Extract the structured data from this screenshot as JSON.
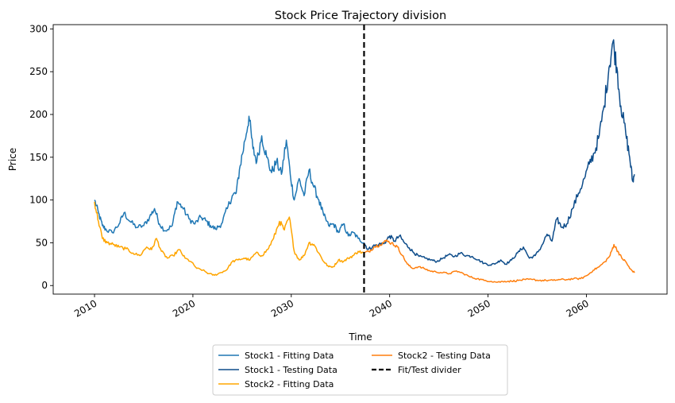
{
  "chart_data": {
    "type": "line",
    "title": "Stock Price Trajectory division",
    "xlabel": "Time",
    "ylabel": "Price",
    "xlim": [
      2005.8,
      2068.2
    ],
    "ylim": [
      -10,
      305
    ],
    "x_ticks": [
      2010,
      2020,
      2030,
      2040,
      2050,
      2060
    ],
    "y_ticks": [
      0,
      50,
      100,
      150,
      200,
      250,
      300
    ],
    "grid": false,
    "legend_placement": "below plot, centered",
    "divider": {
      "x": 2037.4,
      "label": "Fit/Test divider",
      "style": "dashed",
      "color": "#000000"
    },
    "series": [
      {
        "name": "Stock1 - Fitting Data",
        "color": "#1f77b4",
        "points": [
          [
            2010.0,
            100
          ],
          [
            2010.4,
            85
          ],
          [
            2010.8,
            70
          ],
          [
            2011.2,
            65
          ],
          [
            2011.8,
            62
          ],
          [
            2012.5,
            72
          ],
          [
            2013.0,
            85
          ],
          [
            2013.6,
            75
          ],
          [
            2014.3,
            68
          ],
          [
            2015.0,
            70
          ],
          [
            2015.6,
            80
          ],
          [
            2016.1,
            90
          ],
          [
            2016.6,
            72
          ],
          [
            2017.2,
            64
          ],
          [
            2017.9,
            70
          ],
          [
            2018.4,
            98
          ],
          [
            2018.9,
            92
          ],
          [
            2019.6,
            78
          ],
          [
            2020.2,
            72
          ],
          [
            2020.8,
            80
          ],
          [
            2021.3,
            76
          ],
          [
            2021.8,
            70
          ],
          [
            2022.3,
            66
          ],
          [
            2022.9,
            72
          ],
          [
            2023.5,
            90
          ],
          [
            2024.0,
            105
          ],
          [
            2024.4,
            108
          ],
          [
            2024.8,
            140
          ],
          [
            2025.3,
            170
          ],
          [
            2025.7,
            198
          ],
          [
            2026.1,
            160
          ],
          [
            2026.5,
            145
          ],
          [
            2027.0,
            175
          ],
          [
            2027.5,
            150
          ],
          [
            2028.0,
            132
          ],
          [
            2028.5,
            145
          ],
          [
            2029.0,
            130
          ],
          [
            2029.5,
            170
          ],
          [
            2029.9,
            130
          ],
          [
            2030.3,
            100
          ],
          [
            2030.8,
            125
          ],
          [
            2031.3,
            105
          ],
          [
            2031.8,
            135
          ],
          [
            2032.3,
            115
          ],
          [
            2032.8,
            100
          ],
          [
            2033.3,
            82
          ],
          [
            2033.8,
            70
          ],
          [
            2034.3,
            72
          ],
          [
            2034.8,
            62
          ],
          [
            2035.3,
            72
          ],
          [
            2035.8,
            58
          ],
          [
            2036.3,
            62
          ],
          [
            2036.8,
            55
          ],
          [
            2037.4,
            50
          ]
        ]
      },
      {
        "name": "Stock1 - Testing Data",
        "color": "#0d4c8a",
        "points": [
          [
            2037.4,
            50
          ],
          [
            2037.8,
            42
          ],
          [
            2038.3,
            46
          ],
          [
            2038.9,
            48
          ],
          [
            2039.5,
            50
          ],
          [
            2040.0,
            58
          ],
          [
            2040.5,
            52
          ],
          [
            2041.0,
            58
          ],
          [
            2041.5,
            50
          ],
          [
            2042.0,
            44
          ],
          [
            2042.5,
            38
          ],
          [
            2043.0,
            34
          ],
          [
            2043.6,
            32
          ],
          [
            2044.2,
            30
          ],
          [
            2044.8,
            28
          ],
          [
            2045.4,
            32
          ],
          [
            2046.0,
            36
          ],
          [
            2046.6,
            34
          ],
          [
            2047.2,
            38
          ],
          [
            2047.8,
            35
          ],
          [
            2048.4,
            34
          ],
          [
            2049.0,
            30
          ],
          [
            2049.6,
            26
          ],
          [
            2050.2,
            24
          ],
          [
            2050.8,
            26
          ],
          [
            2051.3,
            30
          ],
          [
            2051.8,
            25
          ],
          [
            2052.4,
            30
          ],
          [
            2053.0,
            38
          ],
          [
            2053.6,
            45
          ],
          [
            2054.2,
            32
          ],
          [
            2054.8,
            35
          ],
          [
            2055.4,
            45
          ],
          [
            2056.0,
            60
          ],
          [
            2056.5,
            52
          ],
          [
            2057.0,
            78
          ],
          [
            2057.5,
            68
          ],
          [
            2058.0,
            72
          ],
          [
            2058.6,
            90
          ],
          [
            2059.2,
            108
          ],
          [
            2059.8,
            125
          ],
          [
            2060.3,
            142
          ],
          [
            2060.8,
            155
          ],
          [
            2061.3,
            175
          ],
          [
            2061.8,
            210
          ],
          [
            2062.3,
            255
          ],
          [
            2062.7,
            285
          ],
          [
            2063.1,
            255
          ],
          [
            2063.5,
            210
          ],
          [
            2064.0,
            178
          ],
          [
            2064.4,
            150
          ],
          [
            2064.7,
            122
          ],
          [
            2064.9,
            130
          ]
        ]
      },
      {
        "name": "Stock2 - Fitting Data",
        "color": "#ffa500",
        "points": [
          [
            2010.0,
            98
          ],
          [
            2010.4,
            75
          ],
          [
            2010.8,
            55
          ],
          [
            2011.3,
            50
          ],
          [
            2011.9,
            48
          ],
          [
            2012.5,
            45
          ],
          [
            2013.2,
            43
          ],
          [
            2013.9,
            38
          ],
          [
            2014.6,
            35
          ],
          [
            2015.3,
            45
          ],
          [
            2015.8,
            42
          ],
          [
            2016.3,
            55
          ],
          [
            2016.8,
            40
          ],
          [
            2017.4,
            32
          ],
          [
            2018.0,
            35
          ],
          [
            2018.6,
            42
          ],
          [
            2019.2,
            32
          ],
          [
            2019.8,
            28
          ],
          [
            2020.4,
            20
          ],
          [
            2021.0,
            18
          ],
          [
            2021.6,
            14
          ],
          [
            2022.2,
            12
          ],
          [
            2022.8,
            15
          ],
          [
            2023.4,
            18
          ],
          [
            2024.0,
            28
          ],
          [
            2024.6,
            30
          ],
          [
            2025.2,
            32
          ],
          [
            2025.8,
            30
          ],
          [
            2026.4,
            38
          ],
          [
            2027.0,
            35
          ],
          [
            2027.6,
            42
          ],
          [
            2028.2,
            55
          ],
          [
            2028.8,
            75
          ],
          [
            2029.3,
            65
          ],
          [
            2029.8,
            80
          ],
          [
            2030.3,
            40
          ],
          [
            2030.8,
            30
          ],
          [
            2031.3,
            35
          ],
          [
            2031.8,
            50
          ],
          [
            2032.3,
            48
          ],
          [
            2032.8,
            38
          ],
          [
            2033.3,
            28
          ],
          [
            2033.8,
            22
          ],
          [
            2034.3,
            22
          ],
          [
            2034.8,
            30
          ],
          [
            2035.3,
            28
          ],
          [
            2035.8,
            32
          ],
          [
            2036.3,
            35
          ],
          [
            2036.8,
            40
          ],
          [
            2037.4,
            38
          ]
        ]
      },
      {
        "name": "Stock2 - Testing Data",
        "color": "#ff7f0e",
        "points": [
          [
            2037.4,
            38
          ],
          [
            2037.9,
            40
          ],
          [
            2038.4,
            45
          ],
          [
            2039.0,
            48
          ],
          [
            2039.6,
            52
          ],
          [
            2040.2,
            50
          ],
          [
            2040.8,
            45
          ],
          [
            2041.3,
            35
          ],
          [
            2041.8,
            25
          ],
          [
            2042.3,
            20
          ],
          [
            2042.9,
            22
          ],
          [
            2043.5,
            20
          ],
          [
            2044.1,
            17
          ],
          [
            2044.7,
            16
          ],
          [
            2045.4,
            15
          ],
          [
            2046.1,
            14
          ],
          [
            2046.8,
            17
          ],
          [
            2047.5,
            14
          ],
          [
            2048.2,
            10
          ],
          [
            2048.9,
            8
          ],
          [
            2049.6,
            6
          ],
          [
            2050.3,
            5
          ],
          [
            2051.0,
            4
          ],
          [
            2051.7,
            5
          ],
          [
            2052.4,
            5
          ],
          [
            2053.1,
            6
          ],
          [
            2053.8,
            7
          ],
          [
            2054.5,
            7
          ],
          [
            2055.2,
            6
          ],
          [
            2055.9,
            6
          ],
          [
            2056.6,
            6
          ],
          [
            2057.3,
            7
          ],
          [
            2058.0,
            7
          ],
          [
            2058.7,
            8
          ],
          [
            2059.4,
            8
          ],
          [
            2060.1,
            12
          ],
          [
            2060.7,
            18
          ],
          [
            2061.3,
            22
          ],
          [
            2061.9,
            28
          ],
          [
            2062.4,
            35
          ],
          [
            2062.8,
            48
          ],
          [
            2063.2,
            40
          ],
          [
            2063.6,
            32
          ],
          [
            2064.0,
            28
          ],
          [
            2064.4,
            20
          ],
          [
            2064.9,
            15
          ]
        ]
      }
    ],
    "legend": [
      {
        "label": "Stock1 - Fitting Data",
        "color": "#1f77b4",
        "style": "solid"
      },
      {
        "label": "Stock1 - Testing Data",
        "color": "#0d4c8a",
        "style": "solid"
      },
      {
        "label": "Stock2 - Fitting Data",
        "color": "#ffa500",
        "style": "solid"
      },
      {
        "label": "Stock2 - Testing Data",
        "color": "#ff7f0e",
        "style": "solid"
      },
      {
        "label": "Fit/Test divider",
        "color": "#000000",
        "style": "dashed"
      }
    ]
  }
}
